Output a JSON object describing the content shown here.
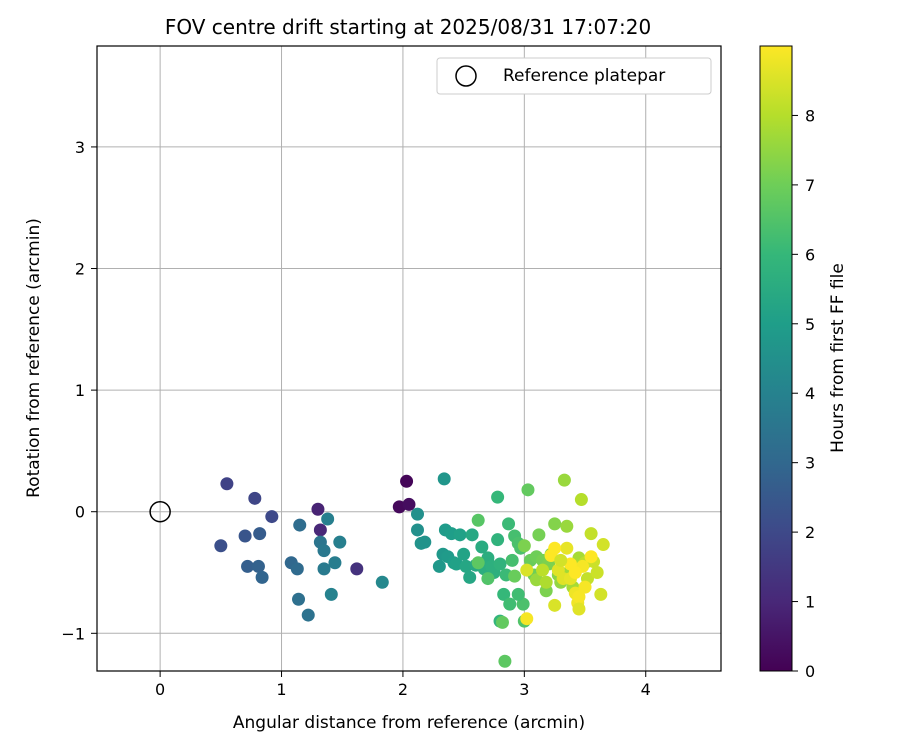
{
  "chart_data": {
    "type": "scatter",
    "title": "FOV centre drift starting at 2025/08/31 17:07:20",
    "xlabel": "Angular distance from reference (arcmin)",
    "ylabel": "Rotation from reference (arcmin)",
    "xlim": [
      -0.52,
      4.62
    ],
    "ylim": [
      -1.31,
      3.83
    ],
    "xticks": [
      "0",
      "1",
      "2",
      "3",
      "4"
    ],
    "yticks": [
      "−1",
      "0",
      "1",
      "2",
      "3"
    ],
    "grid": true,
    "legend": {
      "position": "top-right",
      "entries": [
        "Reference platepar"
      ]
    },
    "reference_point": {
      "x": 0,
      "y": 0,
      "label": "Reference platepar"
    },
    "colorbar": {
      "label": "Hours from first FF file",
      "range": [
        0,
        9.0
      ],
      "ticks": [
        "0",
        "1",
        "2",
        "3",
        "4",
        "5",
        "6",
        "7",
        "8"
      ],
      "colormap": "viridis"
    },
    "points": [
      [
        2.03,
        0.25,
        0.1
      ],
      [
        1.97,
        0.04,
        0.2
      ],
      [
        2.05,
        0.06,
        0.3
      ],
      [
        1.3,
        0.02,
        0.9
      ],
      [
        1.32,
        -0.15,
        1.0
      ],
      [
        1.62,
        -0.47,
        1.3
      ],
      [
        0.55,
        0.23,
        1.8
      ],
      [
        0.78,
        0.11,
        1.9
      ],
      [
        0.92,
        -0.04,
        2.0
      ],
      [
        0.5,
        -0.28,
        2.2
      ],
      [
        0.7,
        -0.2,
        2.4
      ],
      [
        0.82,
        -0.18,
        2.6
      ],
      [
        0.72,
        -0.45,
        2.7
      ],
      [
        0.81,
        -0.45,
        2.8
      ],
      [
        0.84,
        -0.54,
        2.9
      ],
      [
        1.08,
        -0.42,
        3.0
      ],
      [
        1.13,
        -0.47,
        3.1
      ],
      [
        1.15,
        -0.11,
        3.2
      ],
      [
        1.14,
        -0.72,
        3.3
      ],
      [
        1.22,
        -0.85,
        3.4
      ],
      [
        1.32,
        -0.25,
        3.5
      ],
      [
        1.35,
        -0.32,
        3.6
      ],
      [
        1.35,
        -0.47,
        3.7
      ],
      [
        1.44,
        -0.42,
        3.8
      ],
      [
        1.48,
        -0.25,
        3.9
      ],
      [
        1.38,
        -0.06,
        3.9
      ],
      [
        1.41,
        -0.68,
        4.0
      ],
      [
        1.83,
        -0.58,
        4.2
      ],
      [
        2.12,
        -0.02,
        4.5
      ],
      [
        2.12,
        -0.15,
        4.5
      ],
      [
        2.15,
        -0.26,
        4.6
      ],
      [
        2.18,
        -0.25,
        4.6
      ],
      [
        2.34,
        0.27,
        4.7
      ],
      [
        2.3,
        -0.45,
        4.8
      ],
      [
        2.33,
        -0.35,
        4.8
      ],
      [
        2.35,
        -0.15,
        4.9
      ],
      [
        2.37,
        -0.37,
        4.9
      ],
      [
        2.4,
        -0.18,
        5.0
      ],
      [
        2.42,
        -0.42,
        5.0
      ],
      [
        2.44,
        -0.43,
        5.1
      ],
      [
        2.47,
        -0.19,
        5.1
      ],
      [
        2.5,
        -0.35,
        5.2
      ],
      [
        2.52,
        -0.45,
        5.3
      ],
      [
        2.55,
        -0.54,
        5.3
      ],
      [
        2.57,
        -0.19,
        5.4
      ],
      [
        2.6,
        -0.44,
        5.4
      ],
      [
        2.65,
        -0.29,
        5.5
      ],
      [
        2.67,
        -0.47,
        5.6
      ],
      [
        2.7,
        -0.38,
        5.6
      ],
      [
        2.73,
        -0.45,
        5.7
      ],
      [
        2.75,
        -0.5,
        5.7
      ],
      [
        2.78,
        -0.23,
        5.8
      ],
      [
        2.8,
        -0.43,
        5.8
      ],
      [
        2.8,
        -0.9,
        5.9
      ],
      [
        2.78,
        0.12,
        6.0
      ],
      [
        2.83,
        -0.68,
        6.0
      ],
      [
        2.85,
        -0.52,
        6.1
      ],
      [
        2.87,
        -0.1,
        6.1
      ],
      [
        2.88,
        -0.76,
        6.2
      ],
      [
        2.9,
        -0.4,
        6.3
      ],
      [
        2.92,
        -0.2,
        6.3
      ],
      [
        2.95,
        -0.26,
        6.4
      ],
      [
        2.97,
        -0.3,
        6.4
      ],
      [
        2.99,
        -0.76,
        6.4
      ],
      [
        3.0,
        -0.9,
        6.5
      ],
      [
        2.62,
        -0.07,
        6.6
      ],
      [
        2.62,
        -0.42,
        6.7
      ],
      [
        2.84,
        -1.23,
        6.7
      ],
      [
        2.82,
        -0.91,
        6.8
      ],
      [
        3.03,
        0.18,
        6.8
      ],
      [
        3.05,
        -0.4,
        6.9
      ],
      [
        3.08,
        -0.52,
        7.0
      ],
      [
        3.1,
        -0.37,
        7.0
      ],
      [
        3.12,
        -0.19,
        7.1
      ],
      [
        3.15,
        -0.4,
        7.1
      ],
      [
        3.18,
        -0.65,
        7.2
      ],
      [
        3.2,
        -0.43,
        7.2
      ],
      [
        3.22,
        -0.35,
        7.3
      ],
      [
        3.25,
        -0.1,
        7.3
      ],
      [
        3.28,
        -0.52,
        7.4
      ],
      [
        3.3,
        -0.58,
        7.5
      ],
      [
        3.33,
        0.26,
        7.6
      ],
      [
        3.35,
        -0.12,
        7.6
      ],
      [
        3.38,
        -0.48,
        7.7
      ],
      [
        3.4,
        -0.62,
        7.8
      ],
      [
        3.45,
        -0.38,
        7.8
      ],
      [
        3.47,
        0.1,
        8.0
      ],
      [
        3.5,
        -0.42,
        8.1
      ],
      [
        3.52,
        -0.55,
        8.2
      ],
      [
        3.55,
        -0.18,
        8.2
      ],
      [
        3.57,
        -0.41,
        8.3
      ],
      [
        3.6,
        -0.5,
        8.3
      ],
      [
        3.63,
        -0.68,
        8.4
      ],
      [
        3.65,
        -0.27,
        8.4
      ],
      [
        3.02,
        -0.48,
        8.5
      ],
      [
        3.25,
        -0.77,
        8.5
      ],
      [
        3.28,
        -0.48,
        8.6
      ],
      [
        3.32,
        -0.55,
        8.6
      ],
      [
        3.35,
        -0.3,
        8.7
      ],
      [
        3.38,
        -0.55,
        8.7
      ],
      [
        3.42,
        -0.67,
        8.8
      ],
      [
        3.44,
        -0.75,
        8.8
      ],
      [
        3.45,
        -0.7,
        8.9
      ],
      [
        3.48,
        -0.45,
        8.9
      ],
      [
        3.5,
        -0.62,
        8.9
      ],
      [
        3.22,
        -0.36,
        9.0
      ],
      [
        3.25,
        -0.3,
        9.0
      ],
      [
        3.38,
        -0.43,
        9.0
      ],
      [
        3.42,
        -0.5,
        9.0
      ],
      [
        3.55,
        -0.37,
        9.0
      ],
      [
        3.02,
        -0.88,
        8.9
      ],
      [
        2.92,
        -0.53,
        6.9
      ],
      [
        2.95,
        -0.68,
        6.2
      ],
      [
        3.1,
        -0.56,
        7.6
      ],
      [
        3.18,
        -0.58,
        7.9
      ],
      [
        3.0,
        -0.28,
        7.2
      ],
      [
        2.7,
        -0.55,
        6.5
      ],
      [
        3.15,
        -0.48,
        8.1
      ],
      [
        3.3,
        -0.4,
        8.4
      ],
      [
        3.45,
        -0.8,
        8.6
      ]
    ]
  }
}
